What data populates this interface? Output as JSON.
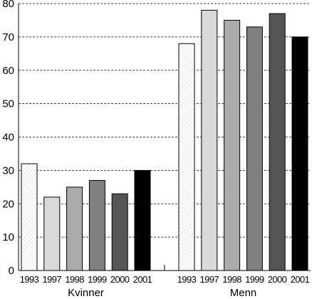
{
  "chart_data": {
    "type": "bar",
    "title": "",
    "xlabel": "",
    "ylabel": "",
    "ylim": [
      0,
      80
    ],
    "yticks": [
      0,
      10,
      20,
      30,
      40,
      50,
      60,
      70,
      80
    ],
    "grid": true,
    "groups": [
      {
        "name": "Kvinner",
        "categories": [
          "1993",
          "1997",
          "1998",
          "1999",
          "2000",
          "2001"
        ],
        "values": [
          32,
          22,
          25,
          27,
          23,
          30
        ]
      },
      {
        "name": "Menn",
        "categories": [
          "1993",
          "1997",
          "1998",
          "1999",
          "2000",
          "2001"
        ],
        "values": [
          68,
          78,
          75,
          73,
          77,
          70
        ]
      }
    ],
    "year_colors": [
      "#f4f4f4",
      "#d9d9d9",
      "#ababab",
      "#7f7f7f",
      "#555555",
      "#000000"
    ]
  }
}
